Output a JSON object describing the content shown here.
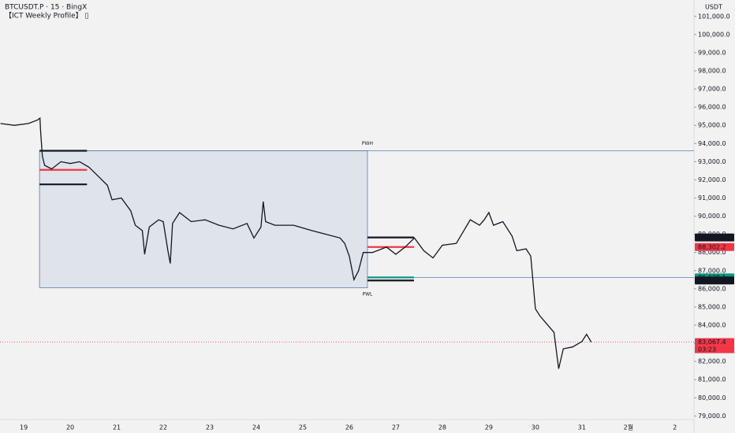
{
  "chart_data": {
    "type": "line",
    "title": "BTCUSDT.P · 15 · BingX",
    "subtitle": "【ICT Weekly Profile】 ▯",
    "y_axis_label": "USDT",
    "color": "#131722",
    "x": [
      -0.5,
      -0.2,
      0.1,
      0.3,
      0.35,
      0.36,
      0.4,
      0.45,
      0.6,
      0.8,
      1.0,
      1.2,
      1.4,
      1.6,
      1.8,
      1.9,
      2.1,
      2.3,
      2.4,
      2.55,
      2.6,
      2.7,
      2.9,
      3.0,
      3.1,
      3.15,
      3.2,
      3.35,
      3.6,
      3.9,
      4.2,
      4.5,
      4.8,
      4.95,
      5.1,
      5.15,
      5.2,
      5.4,
      5.8,
      6.2,
      6.5,
      6.8,
      6.9,
      7.0,
      7.1,
      7.2,
      7.3,
      7.5,
      7.7,
      7.8,
      8.0,
      8.2,
      8.4,
      8.6,
      8.8,
      9.0,
      9.3,
      9.6,
      9.8,
      9.9,
      10.0,
      10.1,
      10.3,
      10.5,
      10.6,
      10.8,
      10.9,
      11.0,
      11.1,
      11.3,
      11.4,
      11.5,
      11.6,
      11.8,
      12.0,
      12.1,
      12.2
    ],
    "values": [
      95100,
      95000,
      95100,
      95300,
      95400,
      94800,
      93300,
      92800,
      92600,
      93000,
      92900,
      93000,
      92700,
      92200,
      91700,
      90900,
      91000,
      90300,
      89500,
      89200,
      87900,
      89400,
      89800,
      89700,
      88100,
      87400,
      89600,
      90200,
      89700,
      89800,
      89500,
      89300,
      89600,
      88800,
      89400,
      90800,
      89700,
      89500,
      89500,
      89200,
      89000,
      88800,
      88500,
      87800,
      86500,
      87000,
      88000,
      88000,
      88200,
      88300,
      87900,
      88300,
      88800,
      88100,
      87700,
      88400,
      88500,
      89800,
      89500,
      89800,
      90200,
      89500,
      89700,
      88900,
      88100,
      88200,
      87800,
      84900,
      84500,
      83900,
      83600,
      81600,
      82700,
      82800,
      83100,
      83500,
      83067.4
    ],
    "xlim": [
      -0.51,
      14.41
    ],
    "ylim": [
      78800,
      101900
    ],
    "xticks": [
      {
        "value": 0,
        "label": "19"
      },
      {
        "value": 1,
        "label": "20"
      },
      {
        "value": 2,
        "label": "21"
      },
      {
        "value": 3,
        "label": "22"
      },
      {
        "value": 4,
        "label": "23"
      },
      {
        "value": 5,
        "label": "24"
      },
      {
        "value": 6,
        "label": "25"
      },
      {
        "value": 7,
        "label": "26"
      },
      {
        "value": 8,
        "label": "27"
      },
      {
        "value": 9,
        "label": "28"
      },
      {
        "value": 10,
        "label": "29"
      },
      {
        "value": 11,
        "label": "30"
      },
      {
        "value": 12,
        "label": "31"
      },
      {
        "value": 13,
        "label": "2월"
      },
      {
        "value": 14,
        "label": "2"
      }
    ],
    "yticks": [
      {
        "value": 79000,
        "label": "79,000.0"
      },
      {
        "value": 80000,
        "label": "80,000.0"
      },
      {
        "value": 81000,
        "label": "81,000.0"
      },
      {
        "value": 82000,
        "label": "82,000.0"
      },
      {
        "value": 83000,
        "label": "83,000.0"
      },
      {
        "value": 84000,
        "label": "84,000.0"
      },
      {
        "value": 85000,
        "label": "85,000.0"
      },
      {
        "value": 86000,
        "label": "86,000.0"
      },
      {
        "value": 87000,
        "label": "87,000.0"
      },
      {
        "value": 88000,
        "label": "88,000.0"
      },
      {
        "value": 89000,
        "label": "89,000.0"
      },
      {
        "value": 90000,
        "label": "90,000.0"
      },
      {
        "value": 91000,
        "label": "91,000.0"
      },
      {
        "value": 92000,
        "label": "92,000.0"
      },
      {
        "value": 93000,
        "label": "93,000.0"
      },
      {
        "value": 94000,
        "label": "94,000.0"
      },
      {
        "value": 95000,
        "label": "95,000.0"
      },
      {
        "value": 96000,
        "label": "96,000.0"
      },
      {
        "value": 97000,
        "label": "97,000.0"
      },
      {
        "value": 98000,
        "label": "98,000.0"
      },
      {
        "value": 99000,
        "label": "99,000.0"
      },
      {
        "value": 100000,
        "label": "100,000.0"
      },
      {
        "value": 101000,
        "label": "101,000.0"
      }
    ],
    "box": {
      "x": [
        0.34,
        7.39
      ],
      "y": [
        86060,
        93600
      ],
      "color": "#5b7db3"
    },
    "levels": [
      {
        "value": 93600,
        "x": [
          0.34,
          14.41
        ],
        "color": "#5b7db3"
      },
      {
        "value": 86628.1,
        "x": [
          7.39,
          14.41
        ],
        "color": "#5b7db3"
      },
      {
        "value": 93600,
        "x": [
          0.34,
          1.36
        ],
        "color": "#131722"
      },
      {
        "value": 92550,
        "x": [
          0.34,
          1.36
        ],
        "color": "#f23645"
      },
      {
        "value": 91750,
        "x": [
          0.34,
          1.36
        ],
        "color": "#131722"
      },
      {
        "value": 88828.2,
        "x": [
          7.39,
          8.39
        ],
        "color": "#131722"
      },
      {
        "value": 88302.2,
        "x": [
          7.39,
          8.39
        ],
        "color": "#f23645"
      },
      {
        "value": 86628.1,
        "x": [
          7.39,
          8.39
        ],
        "color": "#089981"
      },
      {
        "value": 86459.6,
        "x": [
          7.39,
          8.39
        ],
        "color": "#131722"
      },
      {
        "value": 83067.4,
        "x": [
          -0.51,
          14.41
        ],
        "color": "#f23645"
      }
    ],
    "annotations": [
      {
        "text": "PWH",
        "x": 7.39,
        "y": 94000
      },
      {
        "text": "PWL",
        "x": 7.39,
        "y": 85700
      }
    ],
    "price_labels": [
      {
        "value": 88828.2,
        "label": "88,828.2",
        "color": "#131722"
      },
      {
        "value": 88302.2,
        "label": "88,302.2",
        "color": "#f23645"
      },
      {
        "value": 86628.1,
        "label": "86,628.1",
        "color": "#089981"
      },
      {
        "value": 86459.6,
        "label": "86,459.6",
        "color": "#131722"
      },
      {
        "value": 83067.4,
        "label": "83,067.4",
        "color": "#f23645"
      }
    ],
    "countdown": "03:23"
  }
}
